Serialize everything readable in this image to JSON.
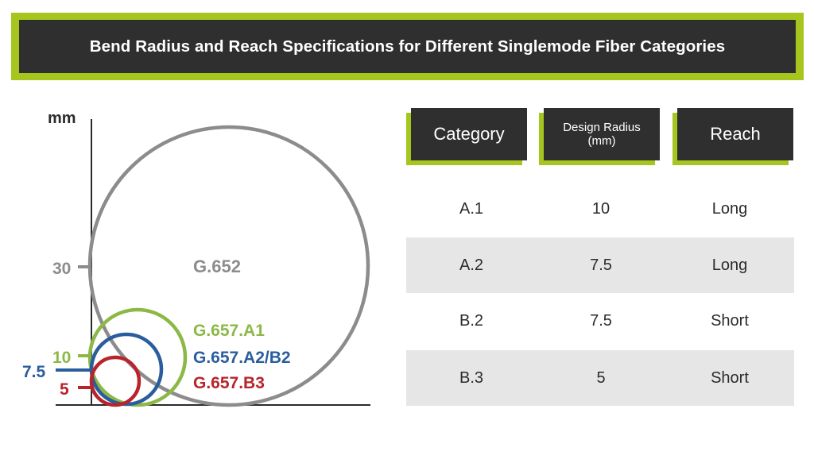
{
  "title": "Bend Radius and Reach Specifications for Different Singlemode Fiber Categories",
  "diagram": {
    "axis_unit": "mm",
    "ticks": [
      {
        "label": "30",
        "color": "#8c8c8c"
      },
      {
        "label": "10",
        "color": "#8cb846"
      },
      {
        "label": "7.5",
        "color": "#2a5d9e"
      },
      {
        "label": "5",
        "color": "#b8242c"
      }
    ],
    "circles": [
      {
        "label": "G.652",
        "color": "#8c8c8c"
      },
      {
        "label": "G.657.A1",
        "color": "#8cb846"
      },
      {
        "label": "G.657.A2/B2",
        "color": "#2a5d9e"
      },
      {
        "label": "G.657.B3",
        "color": "#b8242c"
      }
    ]
  },
  "table": {
    "headers": [
      "Category",
      "Design Radius (mm)",
      "Reach"
    ],
    "rows": [
      [
        "A.1",
        "10",
        "Long"
      ],
      [
        "A.2",
        "7.5",
        "Long"
      ],
      [
        "B.2",
        "7.5",
        "Short"
      ],
      [
        "B.3",
        "5",
        "Short"
      ]
    ]
  },
  "colors": {
    "accent": "#a6c51e",
    "dark": "#2f2f2f",
    "row_shade": "#e6e6e6"
  }
}
